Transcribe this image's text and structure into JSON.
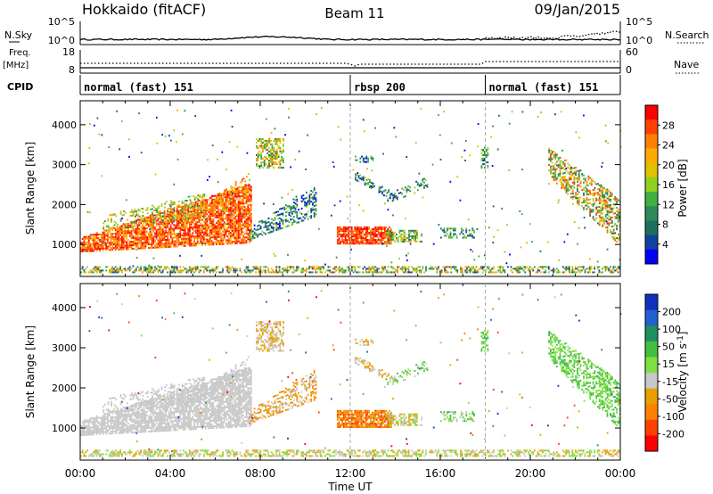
{
  "header": {
    "station": "Hokkaido (fitACF)",
    "beam": "Beam 11",
    "date": "09/Jan/2015"
  },
  "left_labels": {
    "nsky": "N.Sky",
    "freq": "Freq.",
    "freq_unit": "[MHz]",
    "cpid": "CPID"
  },
  "right_labels": {
    "nsearch": "N.Search",
    "nave": "Nave"
  },
  "small_axes": {
    "noise_ticks_left": [
      "10^5",
      "10^0"
    ],
    "noise_ticks_right": [
      "10^5",
      "10^0"
    ],
    "freq_ticks": [
      "18",
      "8"
    ],
    "nave_ticks": [
      "60",
      "0"
    ]
  },
  "cpid_segments": [
    {
      "label": "normal (fast) 151",
      "start": 0,
      "end": 12
    },
    {
      "label": "rbsp 200",
      "start": 12,
      "end": 18
    },
    {
      "label": "normal (fast) 151",
      "start": 18,
      "end": 24
    }
  ],
  "chart_data": [
    {
      "type": "heatmap",
      "panel": "power",
      "ylabel": "Slant Range [km]",
      "ylim": [
        200,
        4600
      ],
      "yticks": [
        1000,
        2000,
        3000,
        4000
      ],
      "xlim": [
        0,
        24
      ],
      "colorbar_label": "Power [dB]",
      "colorbar_ticks": [
        "28",
        "24",
        "20",
        "16",
        "12",
        "8",
        "4"
      ],
      "colorbar_colors": [
        "#ff0000",
        "#ff4000",
        "#ff8000",
        "#ffaa00",
        "#e0c000",
        "#90d020",
        "#40b040",
        "#2e8b57",
        "#1f6f5f",
        "#1040a0",
        "#0000ff"
      ]
    },
    {
      "type": "heatmap",
      "panel": "velocity",
      "ylabel": "Slant Range [km]",
      "ylim": [
        200,
        4600
      ],
      "yticks": [
        1000,
        2000,
        3000,
        4000
      ],
      "xlim": [
        0,
        24
      ],
      "xlabel": "Time UT",
      "xticklabels": [
        "00:00",
        "04:00",
        "08:00",
        "12:00",
        "16:00",
        "20:00",
        "00:00"
      ],
      "colorbar_label": "Velocity [m s^-1]",
      "colorbar_ticks": [
        "200",
        "100",
        "50",
        "15",
        "-15",
        "-50",
        "-100",
        "-200"
      ],
      "colorbar_colors": [
        "#1030c0",
        "#2060d0",
        "#209060",
        "#40c040",
        "#80e040",
        "#c8c8c8",
        "#e8a000",
        "#ff8000",
        "#ff4000",
        "#ff0000"
      ]
    }
  ]
}
